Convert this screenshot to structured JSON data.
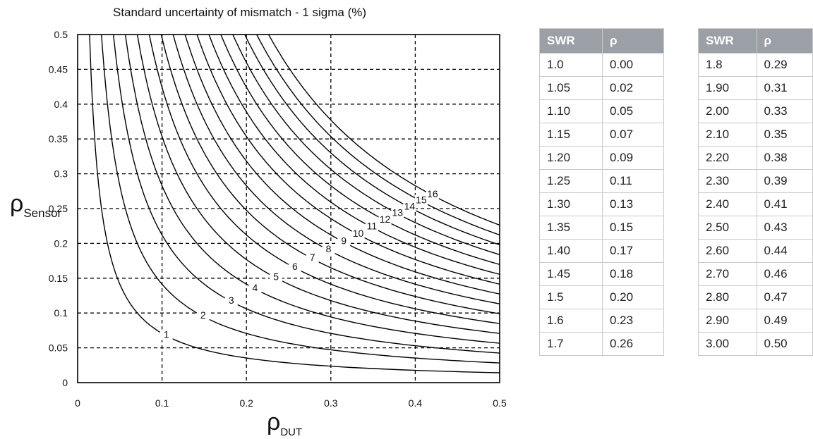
{
  "chart_data": {
    "type": "contour",
    "title": "Standard uncertainty of mismatch - 1 sigma (%)",
    "xlabel_main": "ρ",
    "xlabel_sub": "DUT",
    "ylabel_main": "ρ",
    "ylabel_sub": "Sensor",
    "xlim": [
      0,
      0.5
    ],
    "ylim": [
      0,
      0.5
    ],
    "x_ticks": [
      "0",
      "0.1",
      "0.2",
      "0.3",
      "0.4",
      "0.5"
    ],
    "y_ticks": [
      "0",
      "0.05",
      "0.1",
      "0.15",
      "0.2",
      "0.25",
      "0.3",
      "0.35",
      "0.4",
      "0.45",
      "0.5"
    ],
    "grid": "dashed",
    "levels": [
      1,
      2,
      3,
      4,
      5,
      6,
      7,
      8,
      9,
      10,
      11,
      12,
      13,
      14,
      15,
      16
    ]
  },
  "tables": {
    "header": [
      "SWR",
      "ρ"
    ],
    "left": [
      [
        "1.0",
        "0.00"
      ],
      [
        "1.05",
        "0.02"
      ],
      [
        "1.10",
        "0.05"
      ],
      [
        "1.15",
        "0.07"
      ],
      [
        "1.20",
        "0.09"
      ],
      [
        "1.25",
        "0.11"
      ],
      [
        "1.30",
        "0.13"
      ],
      [
        "1.35",
        "0.15"
      ],
      [
        "1.40",
        "0.17"
      ],
      [
        "1.45",
        "0.18"
      ],
      [
        "1.5",
        "0.20"
      ],
      [
        "1.6",
        "0.23"
      ],
      [
        "1.7",
        "0.26"
      ]
    ],
    "right": [
      [
        "1.8",
        "0.29"
      ],
      [
        "1.90",
        "0.31"
      ],
      [
        "2.00",
        "0.33"
      ],
      [
        "2.10",
        "0.35"
      ],
      [
        "2.20",
        "0.38"
      ],
      [
        "2.30",
        "0.39"
      ],
      [
        "2.40",
        "0.41"
      ],
      [
        "2.50",
        "0.43"
      ],
      [
        "2.60",
        "0.44"
      ],
      [
        "2.70",
        "0.46"
      ],
      [
        "2.80",
        "0.47"
      ],
      [
        "2.90",
        "0.49"
      ],
      [
        "3.00",
        "0.50"
      ]
    ]
  }
}
